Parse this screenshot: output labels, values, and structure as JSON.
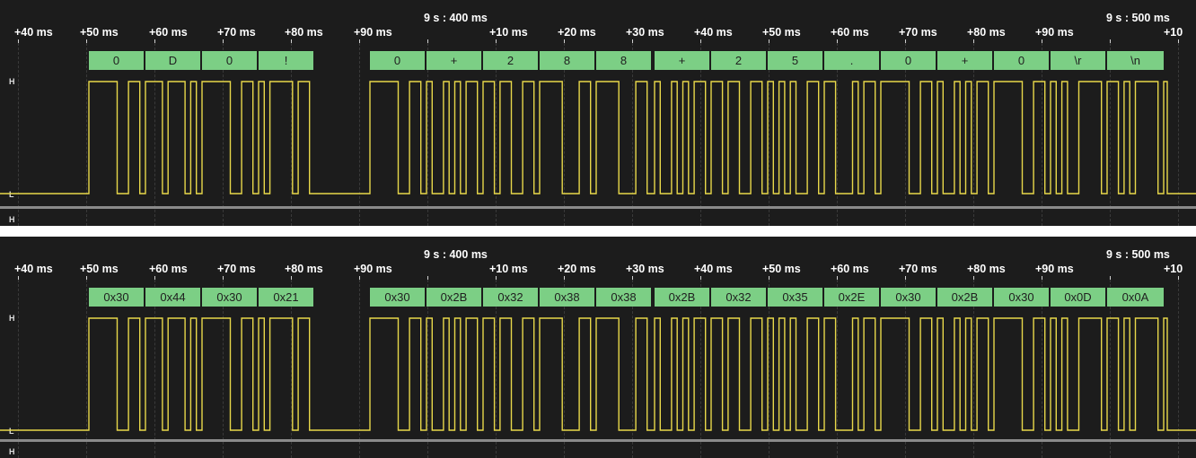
{
  "colors": {
    "background": "#1c1c1c",
    "signal": "#e8d84a",
    "decode_fill": "#7ccf85",
    "separator": "#8a8a8a",
    "ruler_text": "#ffffff"
  },
  "ruler": {
    "major_labels": [
      "9 s : 400 ms",
      "9 s : 500 ms"
    ],
    "tick_labels": [
      "+40 ms",
      "+50 ms",
      "+60 ms",
      "+70 ms",
      "+80 ms",
      "+90 ms",
      "+10 ms",
      "+20 ms",
      "+30 ms",
      "+40 ms",
      "+50 ms",
      "+60 ms",
      "+70 ms",
      "+80 ms",
      "+90 ms",
      "+10"
    ]
  },
  "lane_labels": {
    "high": "H",
    "low": "L"
  },
  "top_panel": {
    "decoded": [
      "0",
      "D",
      "0",
      "!",
      "0",
      "+",
      "2",
      "8",
      "8",
      "+",
      "2",
      "5",
      ".",
      "0",
      "+",
      "0",
      "\\r",
      "\\n"
    ]
  },
  "bottom_panel": {
    "decoded": [
      "0x30",
      "0x44",
      "0x30",
      "0x21",
      "0x30",
      "0x2B",
      "0x32",
      "0x38",
      "0x38",
      "0x2B",
      "0x32",
      "0x35",
      "0x2E",
      "0x30",
      "0x2B",
      "0x30",
      "0x0D",
      "0x0A"
    ]
  }
}
